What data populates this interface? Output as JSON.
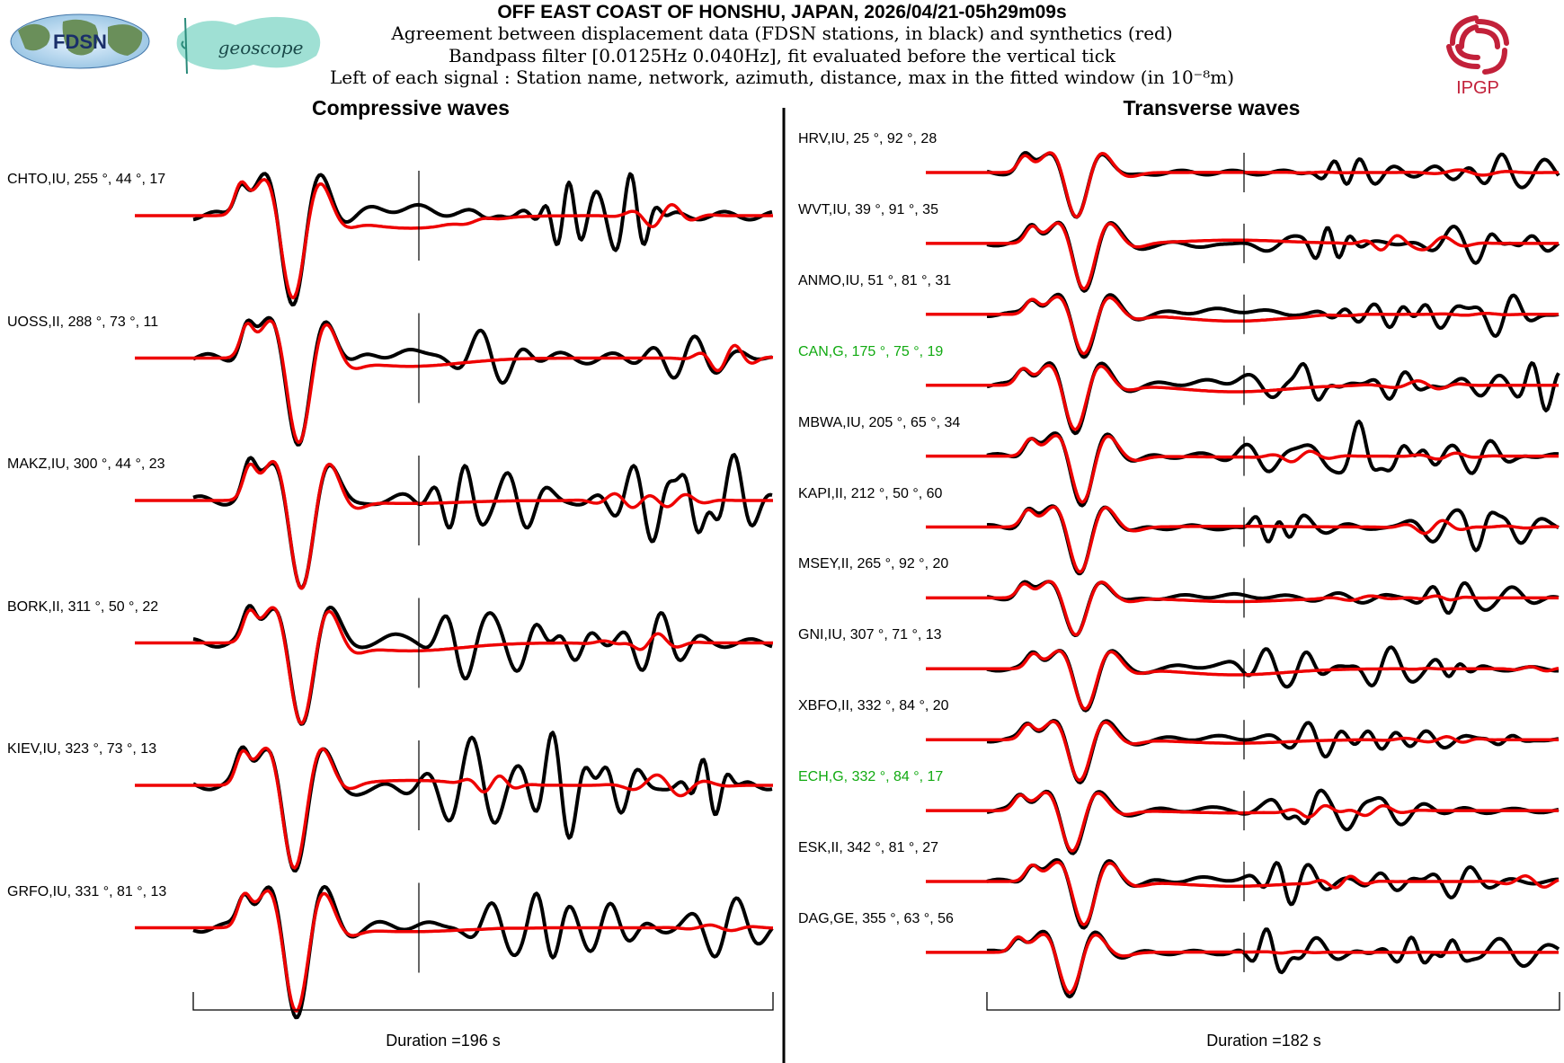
{
  "header": {
    "title": "OFF EAST COAST OF HONSHU, JAPAN, 2026/04/21-05h29m09s",
    "line1": "Agreement between displacement data (FDSN stations, in black) and synthetics (red)",
    "line2": "Bandpass filter [0.0125Hz 0.040Hz], fit evaluated before the vertical tick",
    "line3": "Left of each signal : Station name, network, azimuth, distance, max in the fitted window (in 10⁻⁸m)"
  },
  "logos": {
    "fdsn": "FDSN",
    "geoscope": "geoscope",
    "ipgp": "IPGP"
  },
  "colors": {
    "data": "#000000",
    "synthetic": "#ee0000",
    "highlight_station": "#11aa11"
  },
  "chart_data": [
    {
      "type": "line",
      "title": "Compressive waves",
      "duration_label": "Duration =196 s",
      "duration_s": 196,
      "series_names": [
        "data (black)",
        "synthetics (red)"
      ],
      "traces": [
        {
          "label": "CHTO,IU, 255 °, 44 °, 17",
          "station": "CHTO",
          "network": "IU",
          "azimuth": 255,
          "distance": 44,
          "max": 17,
          "highlight": false
        },
        {
          "label": "UOSS,II, 288 °, 73 °, 11",
          "station": "UOSS",
          "network": "II",
          "azimuth": 288,
          "distance": 73,
          "max": 11,
          "highlight": false
        },
        {
          "label": "MAKZ,IU, 300 °, 44 °, 23",
          "station": "MAKZ",
          "network": "IU",
          "azimuth": 300,
          "distance": 44,
          "max": 23,
          "highlight": false
        },
        {
          "label": "BORK,II, 311 °, 50 °, 22",
          "station": "BORK",
          "network": "II",
          "azimuth": 311,
          "distance": 50,
          "max": 22,
          "highlight": false
        },
        {
          "label": "KIEV,IU, 323 °, 73 °, 13",
          "station": "KIEV",
          "network": "IU",
          "azimuth": 323,
          "distance": 73,
          "max": 13,
          "highlight": false
        },
        {
          "label": "GRFO,IU, 331 °, 81 °, 13",
          "station": "GRFO",
          "network": "IU",
          "azimuth": 331,
          "distance": 81,
          "max": 13,
          "highlight": false
        }
      ]
    },
    {
      "type": "line",
      "title": "Transverse waves",
      "duration_label": "Duration =182 s",
      "duration_s": 182,
      "series_names": [
        "data (black)",
        "synthetics (red)"
      ],
      "traces": [
        {
          "label": "HRV,IU, 25 °, 92 °, 28",
          "station": "HRV",
          "network": "IU",
          "azimuth": 25,
          "distance": 92,
          "max": 28,
          "highlight": false
        },
        {
          "label": "WVT,IU, 39 °, 91 °, 35",
          "station": "WVT",
          "network": "IU",
          "azimuth": 39,
          "distance": 91,
          "max": 35,
          "highlight": false
        },
        {
          "label": "ANMO,IU, 51 °, 81 °, 31",
          "station": "ANMO",
          "network": "IU",
          "azimuth": 51,
          "distance": 81,
          "max": 31,
          "highlight": false
        },
        {
          "label": "CAN,G, 175 °, 75 °, 19",
          "station": "CAN",
          "network": "G",
          "azimuth": 175,
          "distance": 75,
          "max": 19,
          "highlight": true
        },
        {
          "label": "MBWA,IU, 205 °, 65 °, 34",
          "station": "MBWA",
          "network": "IU",
          "azimuth": 205,
          "distance": 65,
          "max": 34,
          "highlight": false
        },
        {
          "label": "KAPI,II, 212 °, 50 °, 60",
          "station": "KAPI",
          "network": "II",
          "azimuth": 212,
          "distance": 50,
          "max": 60,
          "highlight": false
        },
        {
          "label": "MSEY,II, 265 °, 92 °, 20",
          "station": "MSEY",
          "network": "II",
          "azimuth": 265,
          "distance": 92,
          "max": 20,
          "highlight": false
        },
        {
          "label": "GNI,IU, 307 °, 71 °, 13",
          "station": "GNI",
          "network": "IU",
          "azimuth": 307,
          "distance": 71,
          "max": 13,
          "highlight": false
        },
        {
          "label": "XBFO,II, 332 °, 84 °, 20",
          "station": "XBFO",
          "network": "II",
          "azimuth": 332,
          "distance": 84,
          "max": 20,
          "highlight": false
        },
        {
          "label": "ECH,G, 332 °, 84 °, 17",
          "station": "ECH",
          "network": "G",
          "azimuth": 332,
          "distance": 84,
          "max": 17,
          "highlight": true
        },
        {
          "label": "ESK,II, 342 °, 81 °, 27",
          "station": "ESK",
          "network": "II",
          "azimuth": 342,
          "distance": 81,
          "max": 27,
          "highlight": false
        },
        {
          "label": "DAG,GE, 355 °, 63 °, 56",
          "station": "DAG",
          "network": "GE",
          "azimuth": 355,
          "distance": 63,
          "max": 56,
          "highlight": false
        }
      ]
    }
  ]
}
